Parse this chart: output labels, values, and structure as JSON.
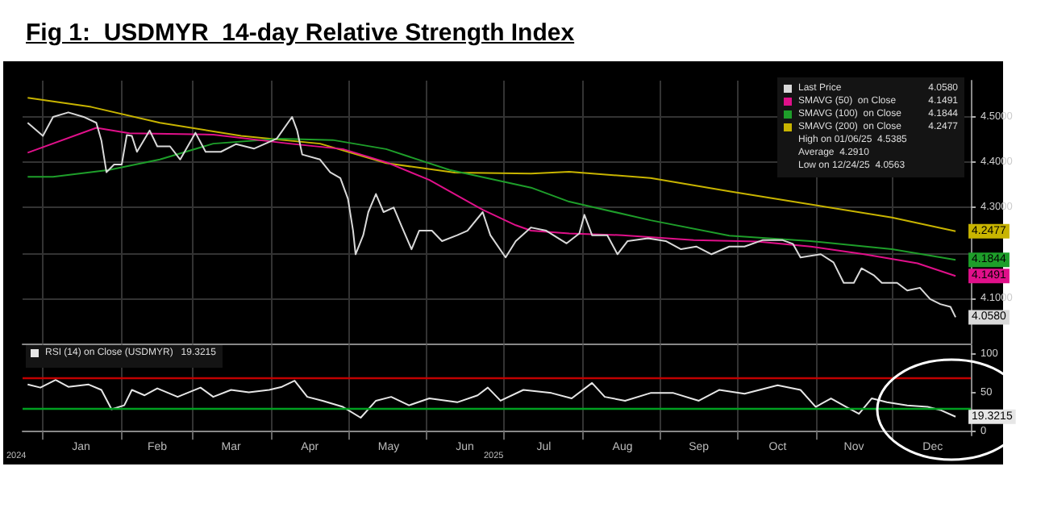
{
  "chart_data": [
    {
      "type": "line",
      "title": "Fig 1:  USDMYR  14-day Relative Strength Index",
      "xlim": [
        "2024-12-24",
        "2026-01-01"
      ],
      "xticks": [
        {
          "value": "2025-01-01",
          "label": null
        },
        {
          "value": "2025-02-01",
          "label": null
        },
        {
          "value": "2025-03-01",
          "label": null
        },
        {
          "value": "2025-04-01",
          "label": null
        },
        {
          "value": "2025-05-01",
          "label": null
        },
        {
          "value": "2025-06-01",
          "label": null
        },
        {
          "value": "2025-07-01",
          "label": null
        },
        {
          "value": "2025-08-01",
          "label": null
        },
        {
          "value": "2025-09-01",
          "label": null
        },
        {
          "value": "2025-10-01",
          "label": null
        },
        {
          "value": "2025-11-01",
          "label": null
        },
        {
          "value": "2025-12-01",
          "label": null
        }
      ],
      "ylim": [
        4.0,
        4.58
      ],
      "yticks": [
        {
          "value": 4.1,
          "label": "4.1000"
        },
        {
          "value": 4.2,
          "label": null
        },
        {
          "value": 4.3,
          "label": "4.3000"
        },
        {
          "value": 4.4,
          "label": "4.4000"
        },
        {
          "value": 4.5,
          "label": "4.5000"
        }
      ],
      "tick_labels": "y",
      "grid": true,
      "legend": "top right",
      "annotations": [
        "High on 01/06/25  4.5385",
        "Average  4.2910",
        "Low on 12/24/25  4.0563"
      ],
      "series": [
        {
          "name": "Last Price",
          "color": "#d9d9d9",
          "x": [
            "2024-12-26",
            "2025-01-01",
            "2025-01-05",
            "2025-01-11",
            "2025-01-17",
            "2025-01-22",
            "2025-01-24",
            "2025-01-26",
            "2025-01-29",
            "2025-02-01",
            "2025-02-03",
            "2025-02-05",
            "2025-02-07",
            "2025-02-12",
            "2025-02-15",
            "2025-02-20",
            "2025-02-24",
            "2025-03-02",
            "2025-03-06",
            "2025-03-12",
            "2025-03-18",
            "2025-03-25",
            "2025-04-03",
            "2025-04-09",
            "2025-04-11",
            "2025-04-13",
            "2025-04-20",
            "2025-04-24",
            "2025-04-28",
            "2025-05-01",
            "2025-05-03",
            "2025-05-04",
            "2025-05-07",
            "2025-05-09",
            "2025-05-12",
            "2025-05-15",
            "2025-05-19",
            "2025-05-22",
            "2025-05-26",
            "2025-05-29",
            "2025-06-03",
            "2025-06-07",
            "2025-06-13",
            "2025-06-17",
            "2025-06-23",
            "2025-06-26",
            "2025-07-02",
            "2025-07-06",
            "2025-07-12",
            "2025-07-18",
            "2025-07-26",
            "2025-07-31",
            "2025-08-02",
            "2025-08-05",
            "2025-08-11",
            "2025-08-15",
            "2025-08-19",
            "2025-08-27",
            "2025-09-03",
            "2025-09-09",
            "2025-09-15",
            "2025-09-21",
            "2025-09-28",
            "2025-10-04",
            "2025-10-11",
            "2025-10-19",
            "2025-10-23",
            "2025-10-26",
            "2025-11-03",
            "2025-11-08",
            "2025-11-12",
            "2025-11-16",
            "2025-11-19",
            "2025-11-24",
            "2025-11-27",
            "2025-12-03",
            "2025-12-07",
            "2025-12-12",
            "2025-12-16",
            "2025-12-20",
            "2025-12-24",
            "2025-12-26"
          ],
          "values": [
            4.487,
            4.458,
            4.5,
            4.51,
            4.5,
            4.487,
            4.448,
            4.378,
            4.395,
            4.395,
            4.46,
            4.458,
            4.423,
            4.47,
            4.435,
            4.435,
            4.406,
            4.465,
            4.423,
            4.423,
            4.44,
            4.43,
            4.452,
            4.5,
            4.47,
            4.417,
            4.406,
            4.378,
            4.365,
            4.319,
            4.249,
            4.197,
            4.239,
            4.29,
            4.33,
            4.29,
            4.3,
            4.26,
            4.208,
            4.249,
            4.249,
            4.226,
            4.239,
            4.249,
            4.29,
            4.239,
            4.19,
            4.226,
            4.256,
            4.249,
            4.221,
            4.243,
            4.284,
            4.239,
            4.239,
            4.197,
            4.226,
            4.232,
            4.226,
            4.208,
            4.214,
            4.197,
            4.214,
            4.214,
            4.228,
            4.228,
            4.22,
            4.19,
            4.197,
            4.179,
            4.134,
            4.134,
            4.166,
            4.15,
            4.134,
            4.134,
            4.117,
            4.123,
            4.098,
            4.087,
            4.081,
            4.058
          ],
          "value_labels": [
            null,
            null,
            null,
            null,
            null,
            null,
            null,
            null,
            null,
            null,
            null,
            null,
            null,
            null,
            null,
            null,
            null,
            null,
            null,
            null,
            null,
            null,
            null,
            null,
            null,
            null,
            null,
            null,
            null,
            null,
            null,
            null,
            null,
            null,
            null,
            null,
            null,
            null,
            null,
            null,
            null,
            null,
            null,
            null,
            null,
            null,
            null,
            null,
            null,
            null,
            null,
            null,
            null,
            null,
            null,
            null,
            null,
            null,
            null,
            null,
            null,
            null,
            null,
            null,
            null,
            null,
            null,
            null,
            null,
            null,
            null,
            null,
            null,
            null,
            null,
            null,
            null,
            null,
            null,
            null,
            null,
            "4.0580"
          ]
        },
        {
          "name": "SMAVG (50)  on Close",
          "color": "#e0108a",
          "x": [
            "2024-12-26",
            "2025-01-22",
            "2025-02-04",
            "2025-03-09",
            "2025-04-08",
            "2025-04-29",
            "2025-05-16",
            "2025-06-02",
            "2025-06-23",
            "2025-07-06",
            "2025-07-12",
            "2025-07-27",
            "2025-08-17",
            "2025-09-14",
            "2025-10-09",
            "2025-10-30",
            "2025-11-20",
            "2025-12-11",
            "2025-12-26"
          ],
          "values": [
            4.421,
            4.476,
            4.464,
            4.461,
            4.441,
            4.429,
            4.4,
            4.361,
            4.295,
            4.261,
            4.249,
            4.243,
            4.239,
            4.228,
            4.225,
            4.214,
            4.197,
            4.177,
            4.1491
          ],
          "value_labels": [
            null,
            null,
            null,
            null,
            null,
            null,
            null,
            null,
            null,
            null,
            null,
            null,
            null,
            null,
            null,
            null,
            null,
            null,
            "4.1491"
          ]
        },
        {
          "name": "SMAVG (100)  on Close",
          "color": "#1e9e2a",
          "x": [
            "2024-12-26",
            "2025-01-05",
            "2025-01-27",
            "2025-02-16",
            "2025-03-09",
            "2025-04-04",
            "2025-04-25",
            "2025-05-16",
            "2025-06-10",
            "2025-07-12",
            "2025-07-27",
            "2025-08-28",
            "2025-09-28",
            "2025-10-30",
            "2025-12-01",
            "2025-12-26"
          ],
          "values": [
            4.368,
            4.368,
            4.383,
            4.406,
            4.441,
            4.452,
            4.449,
            4.429,
            4.383,
            4.344,
            4.313,
            4.272,
            4.238,
            4.226,
            4.208,
            4.1844
          ],
          "value_labels": [
            null,
            null,
            null,
            null,
            null,
            null,
            null,
            null,
            null,
            null,
            null,
            null,
            null,
            null,
            null,
            "4.1844"
          ]
        },
        {
          "name": "SMAVG (200)  on Close",
          "color": "#c8b400",
          "x": [
            "2024-12-26",
            "2025-01-20",
            "2025-02-16",
            "2025-03-20",
            "2025-04-20",
            "2025-05-16",
            "2025-06-12",
            "2025-07-12",
            "2025-07-27",
            "2025-08-28",
            "2025-09-28",
            "2025-10-30",
            "2025-12-01",
            "2025-12-26"
          ],
          "values": [
            4.542,
            4.522,
            4.487,
            4.458,
            4.441,
            4.398,
            4.377,
            4.375,
            4.379,
            4.365,
            4.336,
            4.307,
            4.278,
            4.2477
          ],
          "value_labels": [
            null,
            null,
            null,
            null,
            null,
            null,
            null,
            null,
            null,
            null,
            null,
            null,
            null,
            "4.2477"
          ]
        }
      ]
    },
    {
      "type": "line",
      "xlim": [
        "2024-12-24",
        "2026-01-01"
      ],
      "xticks": [
        {
          "value": "2025-01-01",
          "label": null
        },
        {
          "value": "2025-01-16",
          "label": "Jan"
        },
        {
          "value": "2025-02-01",
          "label": null
        },
        {
          "value": "2025-02-15",
          "label": "Feb"
        },
        {
          "value": "2025-03-01",
          "label": null
        },
        {
          "value": "2025-03-16",
          "label": "Mar"
        },
        {
          "value": "2025-04-01",
          "label": null
        },
        {
          "value": "2025-04-16",
          "label": "Apr"
        },
        {
          "value": "2025-05-01",
          "label": null
        },
        {
          "value": "2025-05-17",
          "label": "May"
        },
        {
          "value": "2025-06-01",
          "label": null
        },
        {
          "value": "2025-06-16",
          "label": "Jun"
        },
        {
          "value": "2025-07-01",
          "label": null
        },
        {
          "value": "2025-07-17",
          "label": "Jul"
        },
        {
          "value": "2025-08-01",
          "label": null
        },
        {
          "value": "2025-08-17",
          "label": "Aug"
        },
        {
          "value": "2025-09-01",
          "label": null
        },
        {
          "value": "2025-09-16",
          "label": "Sep"
        },
        {
          "value": "2025-10-01",
          "label": null
        },
        {
          "value": "2025-10-17",
          "label": "Oct"
        },
        {
          "value": "2025-11-01",
          "label": null
        },
        {
          "value": "2025-11-16",
          "label": "Nov"
        },
        {
          "value": "2025-12-01",
          "label": null
        },
        {
          "value": "2025-12-17",
          "label": "Dec"
        }
      ],
      "ylim": [
        -5,
        112
      ],
      "yticks": [
        0,
        50,
        100
      ],
      "grid": "x",
      "legend": "top left",
      "annotations": [
        "2024",
        "2025"
      ],
      "ref_lines": [
        {
          "axis": "y",
          "value": 70,
          "color": "#c00000"
        },
        {
          "axis": "y",
          "value": 30,
          "color": "#00a020"
        }
      ],
      "series": [
        {
          "name": "RSI (14) on Close (USDMYR)",
          "color": "#e6e6e6",
          "x": [
            "2024-12-26",
            "2024-12-31",
            "2025-01-06",
            "2025-01-11",
            "2025-01-19",
            "2025-01-24",
            "2025-01-28",
            "2025-02-02",
            "2025-02-05",
            "2025-02-10",
            "2025-02-15",
            "2025-02-23",
            "2025-03-04",
            "2025-03-09",
            "2025-03-16",
            "2025-03-23",
            "2025-03-31",
            "2025-04-05",
            "2025-04-10",
            "2025-04-15",
            "2025-04-21",
            "2025-04-29",
            "2025-05-06",
            "2025-05-12",
            "2025-05-18",
            "2025-05-25",
            "2025-06-02",
            "2025-06-13",
            "2025-06-21",
            "2025-06-25",
            "2025-06-30",
            "2025-07-09",
            "2025-07-20",
            "2025-07-28",
            "2025-08-05",
            "2025-08-10",
            "2025-08-18",
            "2025-08-28",
            "2025-09-06",
            "2025-09-16",
            "2025-09-24",
            "2025-10-04",
            "2025-10-17",
            "2025-10-26",
            "2025-11-01",
            "2025-11-07",
            "2025-11-13",
            "2025-11-18",
            "2025-11-23",
            "2025-11-29",
            "2025-12-07",
            "2025-12-15",
            "2025-12-20",
            "2025-12-26"
          ],
          "values": [
            61,
            57,
            67,
            58,
            61,
            54,
            29,
            34,
            54,
            47,
            56,
            45,
            57,
            45,
            54,
            51,
            54,
            58,
            66,
            45,
            40,
            32,
            18,
            40,
            45,
            34,
            43,
            38,
            47,
            57,
            40,
            54,
            50,
            43,
            63,
            45,
            40,
            50,
            50,
            40,
            54,
            49,
            60,
            54,
            32,
            43,
            32,
            23,
            43,
            38,
            34,
            32,
            28,
            19.3215
          ],
          "value_labels": [
            null,
            null,
            null,
            null,
            null,
            null,
            null,
            null,
            null,
            null,
            null,
            null,
            null,
            null,
            null,
            null,
            null,
            null,
            null,
            null,
            null,
            null,
            null,
            null,
            null,
            null,
            null,
            null,
            null,
            null,
            null,
            null,
            null,
            null,
            null,
            null,
            null,
            null,
            null,
            null,
            null,
            null,
            null,
            null,
            null,
            null,
            null,
            null,
            null,
            null,
            null,
            null,
            null,
            "19.3215"
          ]
        }
      ]
    }
  ]
}
